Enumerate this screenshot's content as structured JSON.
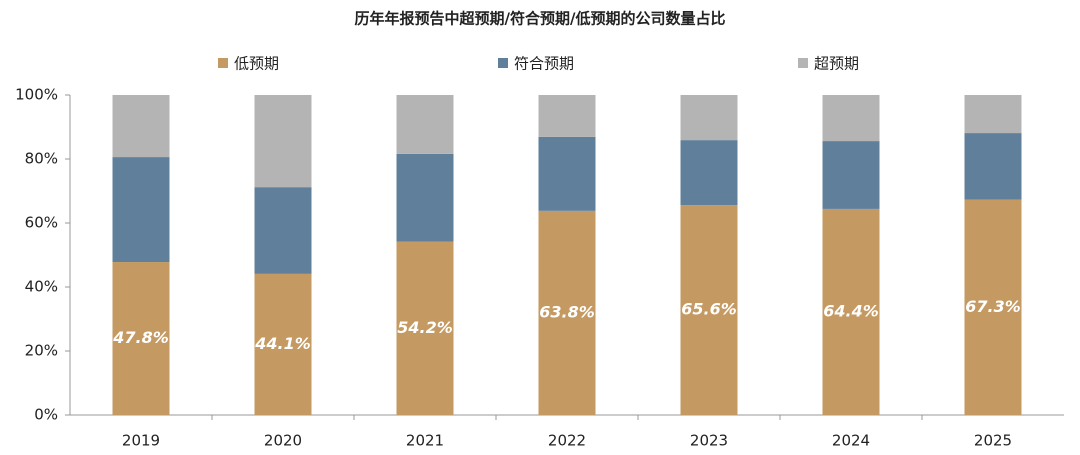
{
  "chart_data": {
    "type": "stacked_bar",
    "title": "历年年报预告中超预期/符合预期/低预期的公司数量占比",
    "categories": [
      "2019",
      "2020",
      "2021",
      "2022",
      "2023",
      "2024",
      "2025"
    ],
    "series": [
      {
        "name": "低预期",
        "color": "#c49a62",
        "values": [
          47.8,
          44.1,
          54.2,
          63.8,
          65.6,
          64.4,
          67.3
        ],
        "value_labels": [
          "47.8%",
          "44.1%",
          "54.2%",
          "63.8%",
          "65.6%",
          "64.4%",
          "67.3%"
        ]
      },
      {
        "name": "符合预期",
        "color": "#5f7f9a",
        "values": [
          32.8,
          27.1,
          27.4,
          23.1,
          20.3,
          21.2,
          20.8
        ]
      },
      {
        "name": "超预期",
        "color": "#b4b4b4",
        "values": [
          19.4,
          28.8,
          18.4,
          13.1,
          14.1,
          14.4,
          11.9
        ]
      }
    ],
    "ylim": [
      0,
      100
    ],
    "yticks": [
      {
        "value": 0,
        "label": "0%"
      },
      {
        "value": 20,
        "label": "20%"
      },
      {
        "value": 40,
        "label": "40%"
      },
      {
        "value": 60,
        "label": "60%"
      },
      {
        "value": 80,
        "label": "80%"
      },
      {
        "value": 100,
        "label": "100%"
      }
    ],
    "legend": "top"
  }
}
